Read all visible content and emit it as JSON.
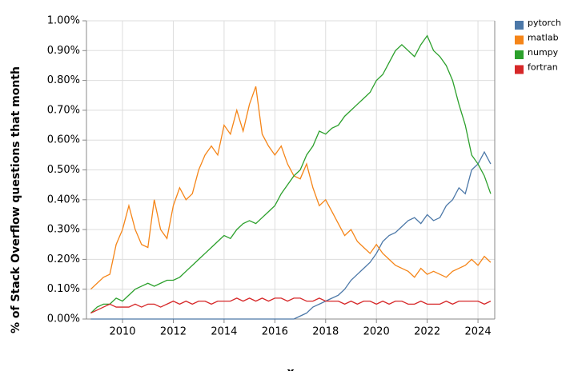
{
  "chart_data": {
    "type": "line",
    "x_label": "x",
    "y_label": "% of Stack Overflow questions that month",
    "x": [
      2008.75,
      2009,
      2009.25,
      2009.5,
      2009.75,
      2010,
      2010.25,
      2010.5,
      2010.75,
      2011,
      2011.25,
      2011.5,
      2011.75,
      2012,
      2012.25,
      2012.5,
      2012.75,
      2013,
      2013.25,
      2013.5,
      2013.75,
      2014,
      2014.25,
      2014.5,
      2014.75,
      2015,
      2015.25,
      2015.5,
      2015.75,
      2016,
      2016.25,
      2016.5,
      2016.75,
      2017,
      2017.25,
      2017.5,
      2017.75,
      2018,
      2018.25,
      2018.5,
      2018.75,
      2019,
      2019.25,
      2019.5,
      2019.75,
      2020,
      2020.25,
      2020.5,
      2020.75,
      2021,
      2021.25,
      2021.5,
      2021.75,
      2022,
      2022.25,
      2022.5,
      2022.75,
      2023,
      2023.25,
      2023.5,
      2023.75,
      2024,
      2024.25,
      2024.5
    ],
    "series": [
      {
        "name": "pytorch",
        "color": "#4c78a8",
        "values": [
          0,
          0,
          0,
          0,
          0,
          0,
          0,
          0,
          0,
          0,
          0,
          0,
          0,
          0,
          0,
          0,
          0,
          0,
          0,
          0,
          0,
          0,
          0,
          0,
          0,
          0,
          0,
          0,
          0,
          0,
          0,
          0,
          0,
          0.01,
          0.02,
          0.04,
          0.05,
          0.06,
          0.07,
          0.08,
          0.1,
          0.13,
          0.15,
          0.17,
          0.19,
          0.22,
          0.26,
          0.28,
          0.29,
          0.31,
          0.33,
          0.34,
          0.32,
          0.35,
          0.33,
          0.34,
          0.38,
          0.4,
          0.44,
          0.42,
          0.5,
          0.52,
          0.56,
          0.52
        ]
      },
      {
        "name": "matlab",
        "color": "#f58518",
        "values": [
          0.1,
          0.12,
          0.14,
          0.15,
          0.25,
          0.3,
          0.38,
          0.3,
          0.25,
          0.24,
          0.4,
          0.3,
          0.27,
          0.38,
          0.44,
          0.4,
          0.42,
          0.5,
          0.55,
          0.58,
          0.55,
          0.65,
          0.62,
          0.7,
          0.63,
          0.72,
          0.78,
          0.62,
          0.58,
          0.55,
          0.58,
          0.52,
          0.48,
          0.47,
          0.52,
          0.44,
          0.38,
          0.4,
          0.36,
          0.32,
          0.28,
          0.3,
          0.26,
          0.24,
          0.22,
          0.25,
          0.22,
          0.2,
          0.18,
          0.17,
          0.16,
          0.14,
          0.17,
          0.15,
          0.16,
          0.15,
          0.14,
          0.16,
          0.17,
          0.18,
          0.2,
          0.18,
          0.21,
          0.19
        ]
      },
      {
        "name": "numpy",
        "color": "#2ca02c",
        "values": [
          0.02,
          0.04,
          0.05,
          0.05,
          0.07,
          0.06,
          0.08,
          0.1,
          0.11,
          0.12,
          0.11,
          0.12,
          0.13,
          0.13,
          0.14,
          0.16,
          0.18,
          0.2,
          0.22,
          0.24,
          0.26,
          0.28,
          0.27,
          0.3,
          0.32,
          0.33,
          0.32,
          0.34,
          0.36,
          0.38,
          0.42,
          0.45,
          0.48,
          0.5,
          0.55,
          0.58,
          0.63,
          0.62,
          0.64,
          0.65,
          0.68,
          0.7,
          0.72,
          0.74,
          0.76,
          0.8,
          0.82,
          0.86,
          0.9,
          0.92,
          0.9,
          0.88,
          0.92,
          0.95,
          0.9,
          0.88,
          0.85,
          0.8,
          0.72,
          0.65,
          0.55,
          0.52,
          0.48,
          0.42
        ]
      },
      {
        "name": "fortran",
        "color": "#d62728",
        "values": [
          0.02,
          0.03,
          0.04,
          0.05,
          0.04,
          0.04,
          0.04,
          0.05,
          0.04,
          0.05,
          0.05,
          0.04,
          0.05,
          0.06,
          0.05,
          0.06,
          0.05,
          0.06,
          0.06,
          0.05,
          0.06,
          0.06,
          0.06,
          0.07,
          0.06,
          0.07,
          0.06,
          0.07,
          0.06,
          0.07,
          0.07,
          0.06,
          0.07,
          0.07,
          0.06,
          0.06,
          0.07,
          0.06,
          0.06,
          0.06,
          0.05,
          0.06,
          0.05,
          0.06,
          0.06,
          0.05,
          0.06,
          0.05,
          0.06,
          0.06,
          0.05,
          0.05,
          0.06,
          0.05,
          0.05,
          0.05,
          0.06,
          0.05,
          0.06,
          0.06,
          0.06,
          0.06,
          0.05,
          0.06
        ]
      }
    ],
    "xlim": [
      2008.58,
      2024.66
    ],
    "xticks": [
      2010,
      2012,
      2014,
      2016,
      2018,
      2020,
      2022,
      2024
    ],
    "ylim": [
      0,
      1
    ],
    "yticks": [
      {
        "value": 0,
        "label": "0.00%"
      },
      {
        "value": 0.1,
        "label": "0.10%"
      },
      {
        "value": 0.2,
        "label": "0.20%"
      },
      {
        "value": 0.3,
        "label": "0.30%"
      },
      {
        "value": 0.4,
        "label": "0.40%"
      },
      {
        "value": 0.5,
        "label": "0.50%"
      },
      {
        "value": 0.6,
        "label": "0.60%"
      },
      {
        "value": 0.7,
        "label": "0.70%"
      },
      {
        "value": 0.8,
        "label": "0.80%"
      },
      {
        "value": 0.9,
        "label": "0.90%"
      },
      {
        "value": 1,
        "label": "1.00%"
      }
    ],
    "grid": true,
    "legend": "right"
  }
}
